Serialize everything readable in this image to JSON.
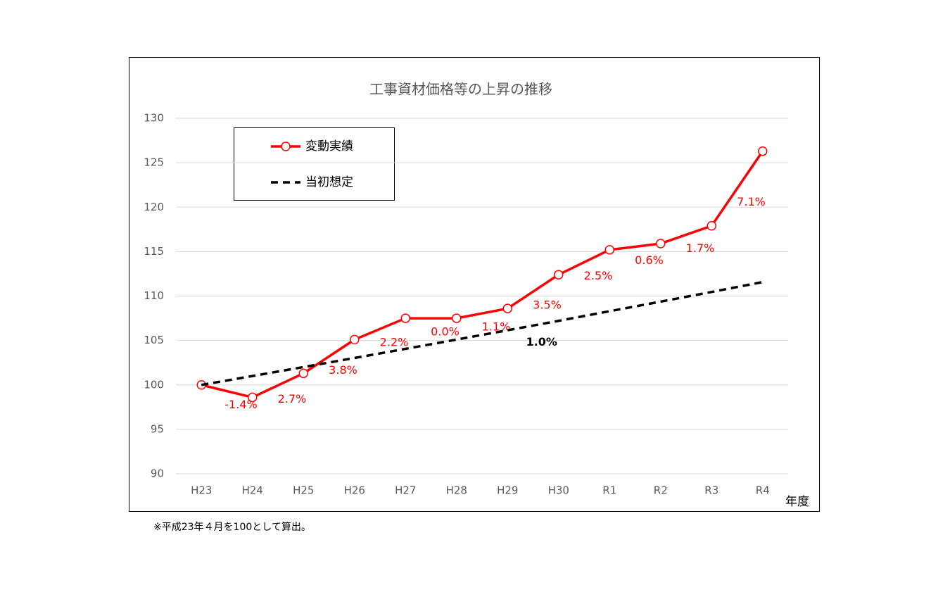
{
  "chart_data": {
    "type": "line",
    "title": "工事資材価格等の上昇の推移",
    "categories": [
      "H23",
      "H24",
      "H25",
      "H26",
      "H27",
      "H28",
      "H29",
      "H30",
      "R1",
      "R2",
      "R3",
      "R4"
    ],
    "x_unit_label": "年度",
    "series": [
      {
        "name": "変動実績",
        "color": "#ff0000",
        "style": "solid",
        "markers": true,
        "values": [
          100,
          98.6,
          101.3,
          105.1,
          107.5,
          107.5,
          108.6,
          112.4,
          115.2,
          115.9,
          117.9,
          126.3
        ],
        "rate_labels": [
          null,
          "-1.4%",
          "2.7%",
          "3.8%",
          "2.2%",
          "0.0%",
          "1.1%",
          "3.5%",
          "2.5%",
          "0.6%",
          "1.7%",
          "7.1%"
        ]
      },
      {
        "name": "当初想定",
        "color": "#000000",
        "style": "dashed",
        "markers": false,
        "values": [
          100,
          101,
          102.01,
          103.03,
          104.06,
          105.1,
          106.15,
          107.21,
          108.29,
          109.37,
          110.46,
          111.57
        ],
        "rate_labels": [
          null,
          null,
          null,
          null,
          null,
          null,
          null,
          "1.0%",
          null,
          null,
          null,
          null
        ]
      }
    ],
    "ylim": [
      90,
      130
    ],
    "yticks": [
      90,
      95,
      100,
      105,
      110,
      115,
      120,
      125,
      130
    ],
    "grid": true,
    "footnote": "※平成23年４月を100として算出。"
  }
}
